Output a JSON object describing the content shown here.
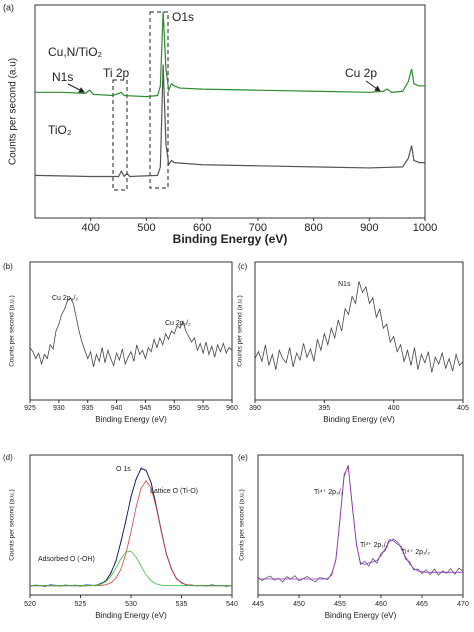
{
  "chart_data": [
    {
      "type": "line",
      "panel_label": "(a)",
      "xlabel": "Binding Energy (eV)",
      "ylabel": "Counts per second (a.u)",
      "xlim": [
        300,
        1000
      ],
      "ylim": [
        0,
        100
      ],
      "xticks": [
        400,
        500,
        600,
        700,
        800,
        900,
        1000
      ],
      "series": [
        {
          "name": "Cu,N/TiO₂",
          "color": "#2e8b2e",
          "x": [
            300,
            350,
            390,
            398,
            405,
            440,
            455,
            460,
            500,
            520,
            525,
            530,
            535,
            540,
            545,
            550,
            560,
            600,
            700,
            800,
            900,
            925,
            932,
            940,
            960,
            970,
            976,
            980,
            990,
            1000
          ],
          "values": [
            59,
            59,
            58.5,
            60,
            58,
            57.5,
            59,
            57.5,
            57,
            57.5,
            62,
            97,
            70,
            60,
            63,
            62,
            61,
            60.5,
            60,
            59.5,
            59,
            59.5,
            60.5,
            59,
            59.5,
            64,
            70,
            63,
            62,
            62
          ]
        },
        {
          "name": "TiO₂",
          "color": "#555555",
          "x": [
            300,
            400,
            450,
            455,
            460,
            465,
            470,
            520,
            525,
            530,
            535,
            540,
            545,
            550,
            600,
            700,
            800,
            900,
            960,
            970,
            976,
            980,
            990,
            1000
          ],
          "values": [
            20,
            19.5,
            19.5,
            22,
            19.5,
            21,
            19.5,
            20,
            24,
            72,
            35,
            25,
            27,
            26,
            25,
            24.5,
            24,
            23.5,
            24,
            28,
            34,
            27,
            26,
            26
          ]
        }
      ],
      "annotations": [
        {
          "text": "O1s",
          "color": "#cc2222"
        },
        {
          "text": "N1s",
          "color": "#cc2222"
        },
        {
          "text": "Ti 2p",
          "color": "#cc2222"
        },
        {
          "text": "Cu 2p",
          "color": "#cc2222"
        }
      ]
    },
    {
      "type": "line",
      "panel_label": "(b)",
      "xlabel": "Binding Energy (eV)",
      "ylabel": "Counts per second (a.u.)",
      "xlim": [
        925,
        960
      ],
      "ylim": [
        0,
        100
      ],
      "xticks": [
        925,
        930,
        935,
        940,
        945,
        950,
        955,
        960
      ],
      "color": "#444444",
      "x": [
        925,
        925.5,
        926,
        926.5,
        927,
        927.5,
        928,
        928.5,
        929,
        929.5,
        930,
        930.5,
        931,
        931.5,
        932,
        932.5,
        933,
        933.5,
        934,
        934.5,
        935,
        935.5,
        936,
        936.5,
        937,
        937.5,
        938,
        938.5,
        939,
        939.5,
        940,
        940.5,
        941,
        941.5,
        942,
        942.5,
        943,
        943.5,
        944,
        944.5,
        945,
        945.5,
        946,
        946.5,
        947,
        947.5,
        948,
        948.5,
        949,
        949.5,
        950,
        950.5,
        951,
        951.5,
        952,
        952.5,
        953,
        953.5,
        954,
        954.5,
        955,
        955.5,
        956,
        956.5,
        957,
        957.5,
        958,
        958.5,
        959,
        959.5,
        960
      ],
      "values": [
        38,
        35,
        30,
        34,
        26,
        33,
        30,
        40,
        37,
        50,
        55,
        62,
        66,
        72,
        74,
        70,
        60,
        50,
        42,
        36,
        30,
        35,
        24,
        33,
        28,
        38,
        27,
        36,
        30,
        25,
        34,
        29,
        37,
        26,
        31,
        35,
        28,
        40,
        33,
        36,
        30,
        38,
        35,
        44,
        38,
        45,
        40,
        48,
        44,
        50,
        48,
        54,
        52,
        57,
        50,
        46,
        42,
        45,
        36,
        41,
        34,
        42,
        33,
        39,
        31,
        40,
        35,
        41,
        34,
        38,
        36
      ],
      "annotations": [
        {
          "text": "Cu 2p₃/₂",
          "color": "#cc2222"
        },
        {
          "text": "Cu 2p₁/₂",
          "color": "#cc2222"
        }
      ]
    },
    {
      "type": "line",
      "panel_label": "(c)",
      "xlabel": "Binding Energy (eV)",
      "ylabel": "Counts per second (a.u.)",
      "xlim": [
        390,
        405
      ],
      "ylim": [
        0,
        100
      ],
      "xticks": [
        390,
        395,
        400,
        405
      ],
      "color": "#444444",
      "x": [
        390,
        390.25,
        390.5,
        390.75,
        391,
        391.25,
        391.5,
        391.75,
        392,
        392.25,
        392.5,
        392.75,
        393,
        393.25,
        393.5,
        393.75,
        394,
        394.25,
        394.5,
        394.75,
        395,
        395.25,
        395.5,
        395.75,
        396,
        396.25,
        396.5,
        396.75,
        397,
        397.25,
        397.5,
        397.75,
        398,
        398.25,
        398.5,
        398.75,
        399,
        399.25,
        399.5,
        399.75,
        400,
        400.25,
        400.5,
        400.75,
        401,
        401.25,
        401.5,
        401.75,
        402,
        402.25,
        402.5,
        402.75,
        403,
        403.25,
        403.5,
        403.75,
        404,
        404.25,
        404.5,
        404.75,
        405
      ],
      "values": [
        30,
        35,
        28,
        40,
        25,
        33,
        22,
        36,
        30,
        27,
        38,
        24,
        34,
        29,
        41,
        31,
        37,
        28,
        44,
        36,
        48,
        40,
        52,
        45,
        58,
        50,
        66,
        62,
        75,
        70,
        86,
        78,
        82,
        70,
        74,
        60,
        66,
        52,
        55,
        42,
        46,
        35,
        40,
        28,
        36,
        25,
        38,
        22,
        33,
        27,
        35,
        20,
        31,
        26,
        34,
        23,
        30,
        21,
        33,
        25,
        28
      ],
      "annotations": [
        {
          "text": "N1s",
          "color": "#cc2222"
        }
      ]
    },
    {
      "type": "line",
      "panel_label": "(d)",
      "xlabel": "Binding Energy (eV)",
      "ylabel": "Counts per second (a.u.)",
      "xlim": [
        520,
        540
      ],
      "ylim": [
        0,
        120
      ],
      "xticks": [
        520,
        525,
        530,
        535,
        540
      ],
      "x": [
        520,
        520.5,
        521,
        521.5,
        522,
        522.5,
        523,
        523.5,
        524,
        524.5,
        525,
        525.5,
        526,
        526.5,
        527,
        527.5,
        528,
        528.5,
        529,
        529.5,
        530,
        530.5,
        531,
        531.5,
        532,
        532.5,
        533,
        533.5,
        534,
        534.5,
        535,
        535.5,
        536,
        536.5,
        537,
        537.5,
        538,
        538.5,
        539,
        539.5,
        540
      ],
      "series": [
        {
          "color": "#3355cc",
          "values": [
            7.5,
            8.6,
            8.1,
            7.2,
            8.9,
            8.3,
            7.6,
            8.7,
            7.9,
            8.5,
            7.4,
            8.8,
            8.6,
            7.9,
            10.1,
            11.6,
            19.2,
            28.4,
            46.3,
            63.5,
            84.9,
            98.6,
            109.1,
            106.4,
            96.5,
            75.8,
            55.3,
            34.9,
            22.8,
            13.7,
            10.9,
            8.3,
            8.7,
            7.7,
            8.4,
            7.6,
            8.9,
            7.8,
            8.2,
            7.3,
            8.6
          ]
        },
        {
          "color": "#1a1a4a",
          "values": [
            8,
            8,
            8,
            8,
            8,
            8,
            8,
            8,
            8,
            8,
            8,
            8,
            8.1,
            8.4,
            9.4,
            12.2,
            18.3,
            29.2,
            45.1,
            64.4,
            83.7,
            99.5,
            108.2,
            107.1,
            95.7,
            76.5,
            54.6,
            35.6,
            22.1,
            14.3,
            10.4,
            8.8,
            8.2,
            8.1,
            8,
            8,
            8,
            8,
            8,
            8,
            8
          ]
        },
        {
          "color": "#d04040",
          "values": [
            8,
            8,
            8,
            8,
            8,
            8,
            8,
            8,
            8,
            8,
            8,
            8,
            8,
            8.1,
            8.2,
            8.8,
            10.4,
            14.3,
            22.1,
            35.5,
            54.2,
            75,
            91.6,
            98,
            91.6,
            75,
            54.2,
            35.5,
            22.1,
            14.3,
            10.4,
            8.8,
            8.2,
            8.1,
            8,
            8,
            8,
            8,
            8,
            8,
            8
          ]
        },
        {
          "color": "#40c040",
          "values": [
            8,
            8,
            8,
            8,
            8,
            8,
            8,
            8,
            8,
            8,
            8,
            8,
            8.1,
            8.3,
            9.2,
            11.4,
            15.9,
            22.9,
            31,
            36.9,
            37.5,
            32.5,
            24.6,
            17.1,
            12.1,
            9.5,
            8.4,
            8.1,
            8,
            8,
            8,
            8,
            8,
            8,
            8,
            8,
            8,
            8,
            8,
            8,
            8
          ]
        }
      ],
      "annotations": [
        {
          "text": "O 1s",
          "color": "#cc2222"
        },
        {
          "text": "Lattice O (Ti-O)",
          "color": "#cc2222"
        },
        {
          "text": "Adsorbed O (-OH)",
          "color": "#cc2222"
        }
      ]
    },
    {
      "type": "line",
      "panel_label": "(e)",
      "xlabel": "Binding Energy (eV)",
      "ylabel": "Counts per second (a.u.)",
      "xlim": [
        445,
        470
      ],
      "ylim": [
        0,
        105
      ],
      "xticks": [
        445,
        450,
        455,
        460,
        465,
        470
      ],
      "x": [
        445,
        445.5,
        446,
        446.5,
        447,
        447.5,
        448,
        448.5,
        449,
        449.5,
        450,
        450.5,
        451,
        451.5,
        452,
        452.5,
        453,
        453.5,
        454,
        454.5,
        455,
        455.5,
        456,
        456.5,
        457,
        457.5,
        458,
        458.5,
        459,
        459.5,
        460,
        460.5,
        461,
        461.5,
        462,
        462.5,
        463,
        463.5,
        464,
        464.5,
        465,
        465.5,
        466,
        466.5,
        467,
        467.5,
        468,
        468.5,
        469,
        469.5,
        470
      ],
      "series": [
        {
          "color": "#555577",
          "values": [
            13.5,
            10.8,
            12.9,
            14.2,
            11.1,
            12.6,
            9.8,
            13.8,
            11.9,
            14.5,
            10.6,
            12.2,
            13.9,
            11.4,
            9.9,
            13.1,
            12.5,
            11.6,
            16.3,
            26.1,
            57.8,
            88.7,
            97.4,
            66.1,
            38.9,
            22.8,
            25.4,
            21.7,
            27.3,
            23.9,
            31.2,
            33.1,
            41.5,
            40.6,
            38.2,
            36.3,
            26.9,
            24.8,
            18.6,
            19.5,
            16.1,
            18.9,
            15.2,
            19.4,
            14.8,
            18.1,
            16.3,
            19.8,
            15.5,
            20.2,
            17.6
          ]
        },
        {
          "color": "#9b30c0",
          "values": [
            12,
            12,
            12,
            12,
            12,
            12,
            12,
            12,
            12,
            12,
            12,
            12,
            12,
            12,
            12,
            12,
            12,
            12.4,
            15.1,
            27.2,
            56.3,
            90.5,
            96.1,
            67.6,
            37.6,
            24.3,
            22.9,
            24.1,
            24.8,
            26,
            29.5,
            34.7,
            39.9,
            42,
            39.9,
            34.7,
            28.5,
            23.2,
            19.9,
            18.1,
            17.4,
            17,
            17,
            17,
            17,
            17,
            17,
            17,
            17,
            17,
            17
          ]
        }
      ],
      "annotations": [
        {
          "text": "Ti⁴⁺ 2p₃/₂",
          "color": "#cc2222"
        },
        {
          "text": "Ti³⁺ 2p₁/₂",
          "color": "#cc2222"
        },
        {
          "text": "Ti⁴⁺ 2p₁/₂",
          "color": "#cc2222"
        }
      ]
    }
  ]
}
